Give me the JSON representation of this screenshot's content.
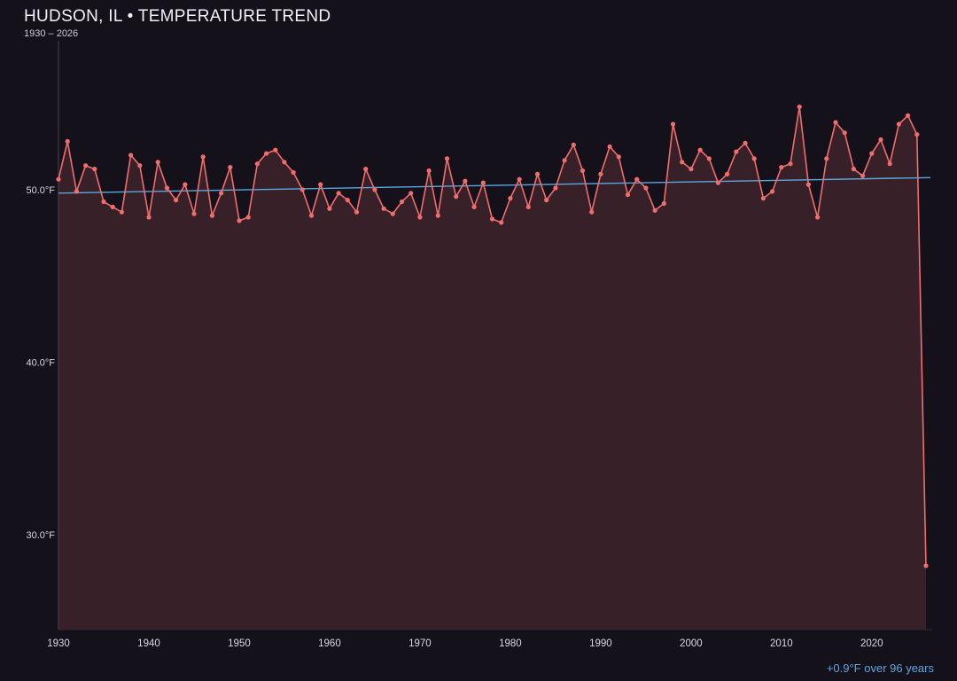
{
  "chart_data": {
    "type": "line",
    "title": "HUDSON, IL • TEMPERATURE TREND",
    "subtitle": "1930 – 2026",
    "ylim": [
      24.5,
      57.5
    ],
    "yticks": [
      {
        "value": 50.0,
        "label": "50.0°F"
      },
      {
        "value": 40.0,
        "label": "40.0°F"
      },
      {
        "value": 30.0,
        "label": "30.0°F"
      }
    ],
    "xticks": [
      1930,
      1940,
      1950,
      1960,
      1970,
      1980,
      1990,
      2000,
      2010,
      2020
    ],
    "years": [
      1930,
      1931,
      1932,
      1933,
      1934,
      1935,
      1936,
      1937,
      1938,
      1939,
      1940,
      1941,
      1942,
      1943,
      1944,
      1945,
      1946,
      1947,
      1948,
      1949,
      1950,
      1951,
      1952,
      1953,
      1954,
      1955,
      1956,
      1957,
      1958,
      1959,
      1960,
      1961,
      1962,
      1963,
      1964,
      1965,
      1966,
      1967,
      1968,
      1969,
      1970,
      1971,
      1972,
      1973,
      1974,
      1975,
      1976,
      1977,
      1978,
      1979,
      1980,
      1981,
      1982,
      1983,
      1984,
      1985,
      1986,
      1987,
      1988,
      1989,
      1990,
      1991,
      1992,
      1993,
      1994,
      1995,
      1996,
      1997,
      1998,
      1999,
      2000,
      2001,
      2002,
      2003,
      2004,
      2005,
      2006,
      2007,
      2008,
      2009,
      2010,
      2011,
      2012,
      2013,
      2014,
      2015,
      2016,
      2017,
      2018,
      2019,
      2020,
      2021,
      2022,
      2023,
      2024,
      2025,
      2026
    ],
    "values": [
      50.6,
      52.8,
      49.9,
      51.4,
      51.2,
      49.3,
      49.0,
      48.7,
      52.0,
      51.4,
      48.4,
      51.6,
      50.1,
      49.4,
      50.3,
      48.6,
      51.9,
      48.5,
      49.8,
      51.3,
      48.2,
      48.4,
      51.5,
      52.1,
      52.3,
      51.6,
      51.0,
      50.0,
      48.5,
      50.3,
      48.9,
      49.8,
      49.4,
      48.7,
      51.2,
      50.0,
      48.9,
      48.6,
      49.3,
      49.8,
      48.4,
      51.1,
      48.5,
      51.8,
      49.6,
      50.5,
      49.0,
      50.4,
      48.3,
      48.1,
      49.5,
      50.6,
      49.0,
      50.9,
      49.4,
      50.1,
      51.7,
      52.6,
      51.1,
      48.7,
      50.9,
      52.5,
      51.9,
      49.7,
      50.6,
      50.1,
      48.8,
      49.2,
      53.8,
      51.6,
      51.2,
      52.3,
      51.8,
      50.4,
      50.9,
      52.2,
      52.7,
      51.8,
      49.5,
      49.9,
      51.3,
      51.5,
      54.8,
      50.3,
      48.4,
      51.8,
      53.9,
      53.3,
      51.2,
      50.8,
      52.1,
      52.9,
      51.5,
      53.8,
      54.3,
      53.2,
      28.2
    ],
    "ylabel_unit": "°F",
    "trend": {
      "start_value": 49.8,
      "end_value": 50.7,
      "label": "+0.9°F over 96 years"
    },
    "legend": "none",
    "grid": "off",
    "colors": {
      "background": "#15111b",
      "line": "#f06d6d",
      "point": "#f06d6d",
      "area_fill": "rgba(244,110,110,0.16)",
      "trend_line": "#5aa7e0",
      "axis": "#494452",
      "tick_text": "#d9d7de",
      "title_text": "#f2f1f4"
    }
  }
}
